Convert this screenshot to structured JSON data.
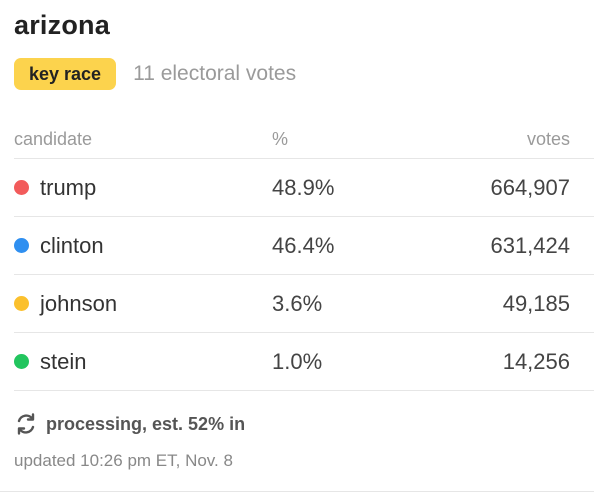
{
  "race": {
    "state": "arizona",
    "badge": "key race",
    "electoral_votes": "11 electoral votes"
  },
  "table": {
    "headers": {
      "candidate": "candidate",
      "percent": "%",
      "votes": "votes"
    },
    "rows": [
      {
        "candidate": "trump",
        "percent": "48.9%",
        "votes": "664,907",
        "color": "#f25b5b"
      },
      {
        "candidate": "clinton",
        "percent": "46.4%",
        "votes": "631,424",
        "color": "#2f8ff0"
      },
      {
        "candidate": "johnson",
        "percent": "3.6%",
        "votes": "49,185",
        "color": "#fbc02d"
      },
      {
        "candidate": "stein",
        "percent": "1.0%",
        "votes": "14,256",
        "color": "#22c55e"
      }
    ]
  },
  "status": {
    "icon": "refresh-icon",
    "text": "processing, est. 52% in",
    "updated": "updated 10:26 pm ET, Nov. 8"
  },
  "colors": {
    "badge": "#fcd34d"
  }
}
